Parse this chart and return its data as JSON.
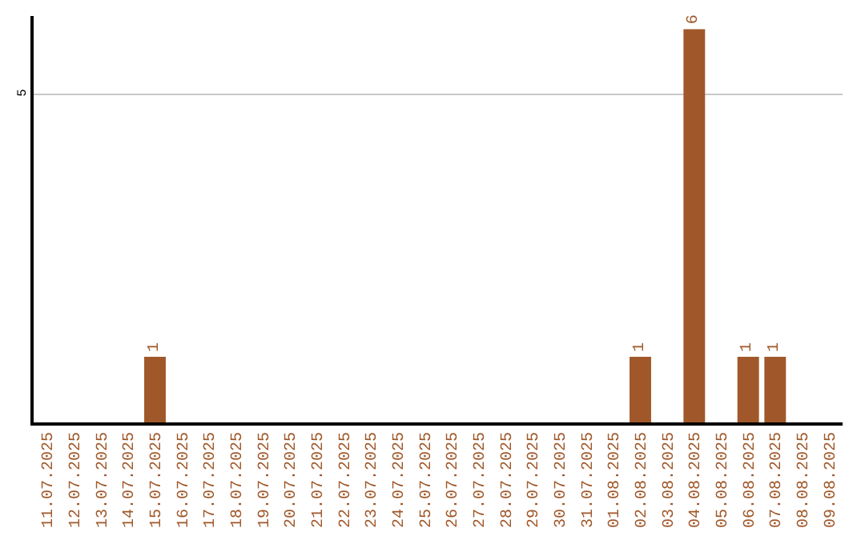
{
  "chart_data": {
    "type": "bar",
    "categories": [
      "11.07.2025",
      "12.07.2025",
      "13.07.2025",
      "14.07.2025",
      "15.07.2025",
      "16.07.2025",
      "17.07.2025",
      "18.07.2025",
      "19.07.2025",
      "20.07.2025",
      "21.07.2025",
      "22.07.2025",
      "23.07.2025",
      "24.07.2025",
      "25.07.2025",
      "26.07.2025",
      "27.07.2025",
      "28.07.2025",
      "29.07.2025",
      "30.07.2025",
      "31.07.2025",
      "01.08.2025",
      "02.08.2025",
      "03.08.2025",
      "04.08.2025",
      "05.08.2025",
      "06.08.2025",
      "07.08.2025",
      "08.08.2025",
      "09.08.2025"
    ],
    "values": [
      0,
      0,
      0,
      0,
      1,
      0,
      0,
      0,
      0,
      0,
      0,
      0,
      0,
      0,
      0,
      0,
      0,
      0,
      0,
      0,
      0,
      0,
      1,
      0,
      6,
      0,
      1,
      1,
      0,
      0
    ],
    "value_labels": [
      null,
      null,
      null,
      null,
      "1",
      null,
      null,
      null,
      null,
      null,
      null,
      null,
      null,
      null,
      null,
      null,
      null,
      null,
      null,
      null,
      null,
      null,
      "1",
      null,
      "6",
      null,
      "1",
      "1",
      null,
      null
    ],
    "color": "#a0582a",
    "ylim": [
      0,
      6.2
    ],
    "yticks": [
      5
    ],
    "grid": "y"
  }
}
